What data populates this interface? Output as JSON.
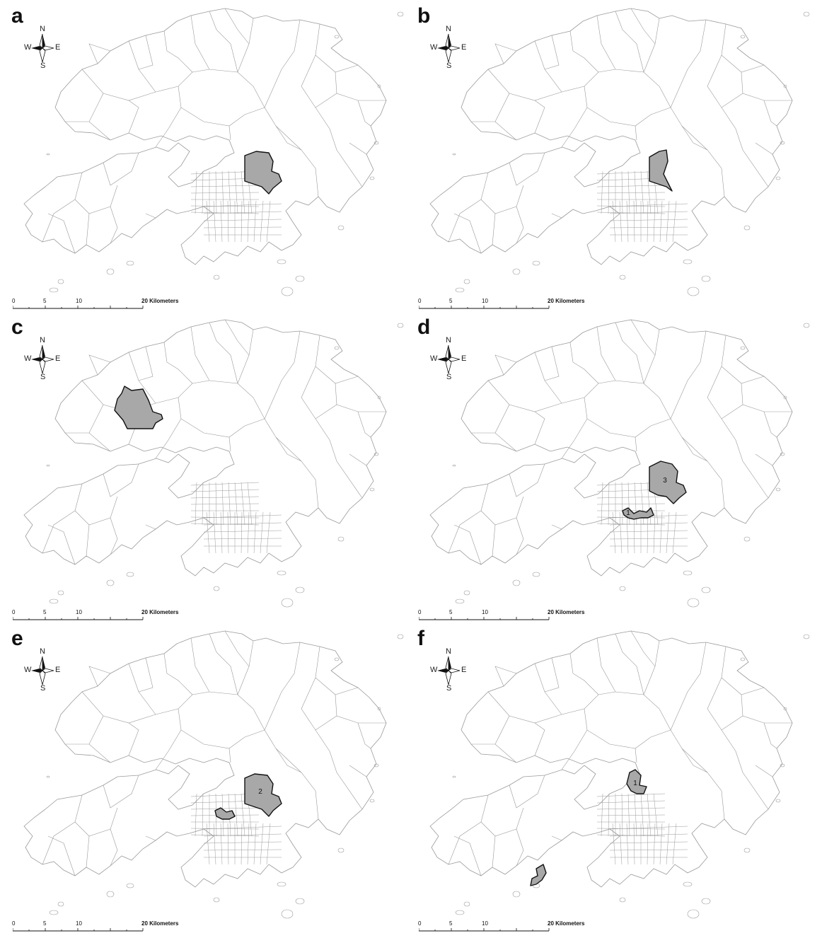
{
  "panels": [
    {
      "letter": "a",
      "highlight": "east-kowloon",
      "labels": []
    },
    {
      "letter": "b",
      "highlight": "east-kowloon-small",
      "labels": []
    },
    {
      "letter": "c",
      "highlight": "yuen-long",
      "labels": []
    },
    {
      "letter": "d",
      "highlight": "east-kowloon-and-island",
      "labels": [
        "3",
        "1"
      ]
    },
    {
      "letter": "e",
      "highlight": "east-kowloon-and-west-island",
      "labels": [
        "2"
      ]
    },
    {
      "letter": "f",
      "highlight": "central-kowloon-and-lantau",
      "labels": [
        "1"
      ]
    }
  ],
  "compass": {
    "n": "N",
    "s": "S",
    "w": "W",
    "e": "E"
  },
  "scale": {
    "t0": "0",
    "t5": "5",
    "t10": "10",
    "t20": "20 Kilometers"
  },
  "colors": {
    "boundary": "#9a9a9a",
    "highlight_fill": "#a8a8a8",
    "highlight_stroke": "#111111"
  }
}
